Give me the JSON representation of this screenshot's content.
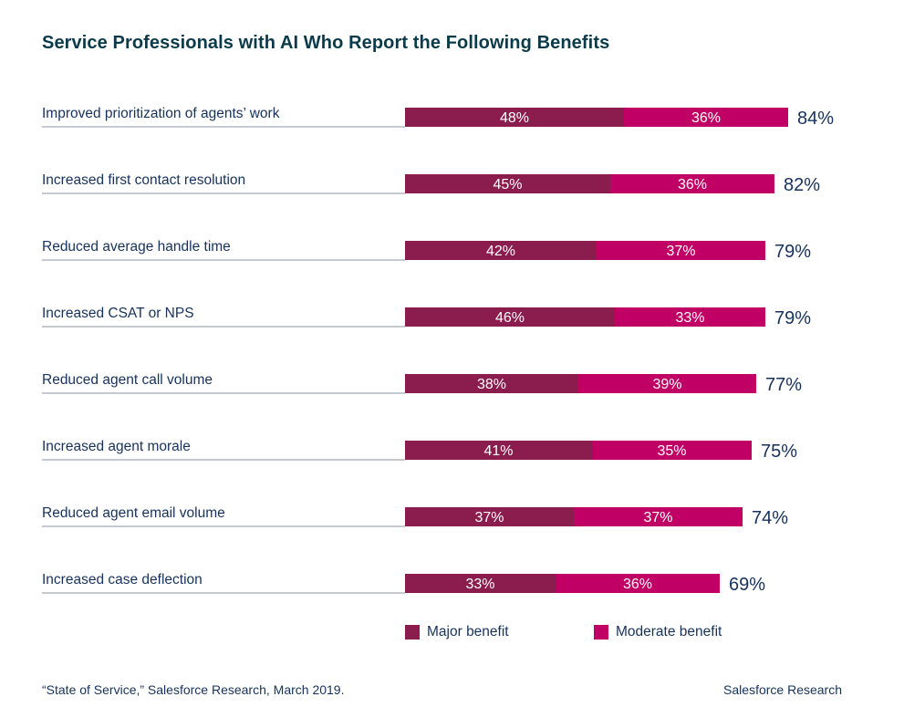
{
  "title": "Service Professionals with AI Who Report the Following Benefits",
  "colors": {
    "major": "#8b1d4e",
    "moderate": "#c10065",
    "divider": "#8a94a0"
  },
  "chart_data": {
    "type": "bar",
    "orientation": "horizontal",
    "stacked": true,
    "categories": [
      "Improved prioritization of agents’ work",
      "Increased first contact resolution",
      "Reduced average handle time",
      "Increased CSAT or NPS",
      "Reduced agent call volume",
      "Increased agent morale",
      "Reduced agent email volume",
      "Increased case deflection"
    ],
    "series": [
      {
        "name": "Major benefit",
        "values": [
          48,
          45,
          42,
          46,
          38,
          41,
          37,
          33
        ]
      },
      {
        "name": "Moderate benefit",
        "values": [
          36,
          36,
          37,
          33,
          39,
          35,
          37,
          36
        ]
      }
    ],
    "totals": [
      84,
      82,
      79,
      79,
      77,
      75,
      74,
      69
    ],
    "value_suffix": "%",
    "xlim": [
      0,
      100
    ],
    "legend_position": "bottom",
    "grid": false
  },
  "legend": {
    "major": "Major benefit",
    "moderate": "Moderate benefit"
  },
  "source": "“State of Service,” Salesforce Research, March 2019.",
  "brand": "Salesforce Research"
}
